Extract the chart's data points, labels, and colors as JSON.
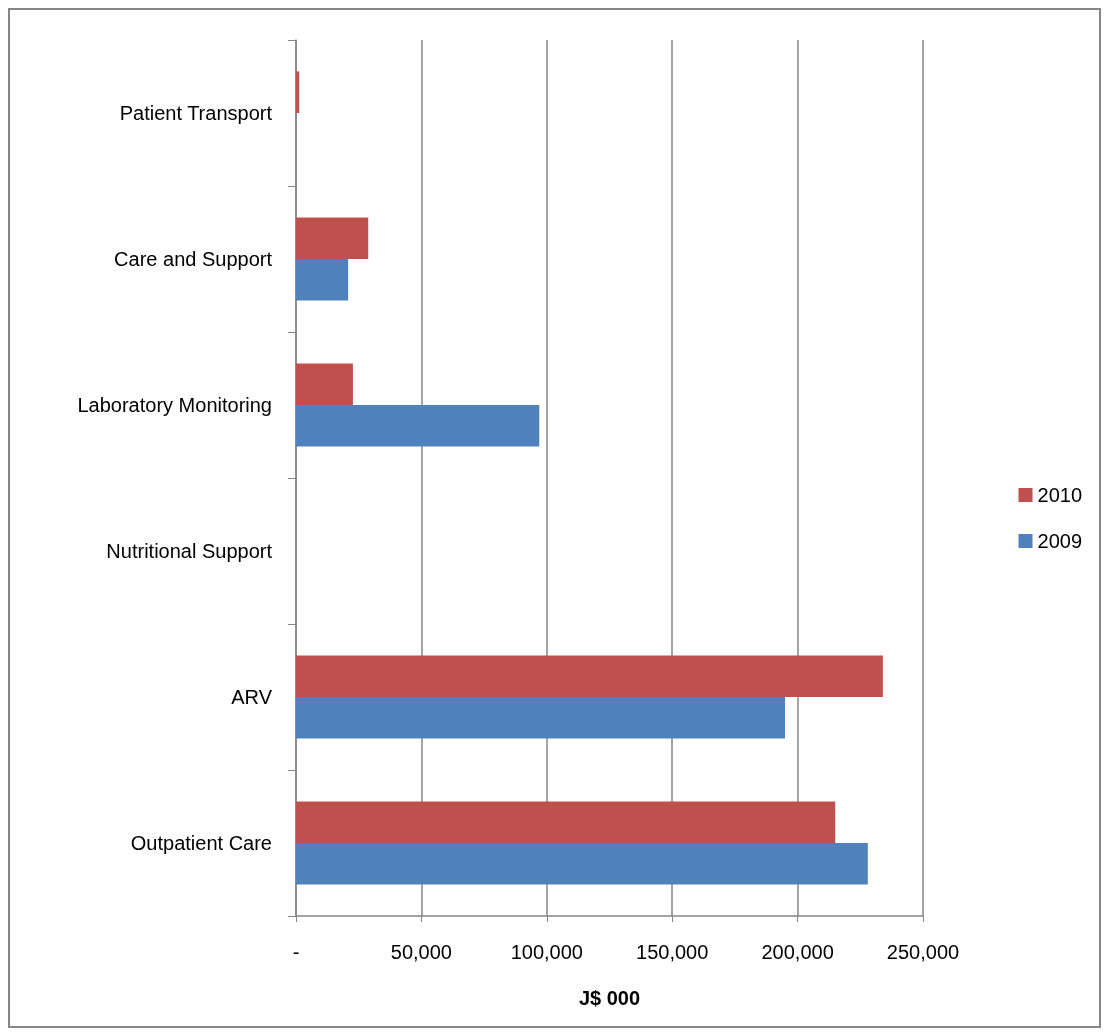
{
  "chart_data": {
    "type": "bar",
    "orientation": "horizontal",
    "categories": [
      "Patient Transport",
      "Care and Support",
      "Laboratory Monitoring",
      "Nutritional Support",
      "ARV",
      "Outpatient Care"
    ],
    "series": [
      {
        "name": "2010",
        "color": "#c0504d",
        "values": [
          1300,
          28800,
          22700,
          null,
          234000,
          215000
        ]
      },
      {
        "name": "2009",
        "color": "#4f81bd",
        "values": [
          null,
          20800,
          97000,
          null,
          195000,
          228000
        ]
      }
    ],
    "xlabel": "J$ 000",
    "xlim": [
      0,
      250000
    ],
    "xticks": [
      {
        "value": 0,
        "label": "-"
      },
      {
        "value": 50000,
        "label": "50,000"
      },
      {
        "value": 100000,
        "label": "100,000"
      },
      {
        "value": 150000,
        "label": "150,000"
      },
      {
        "value": 200000,
        "label": "200,000"
      },
      {
        "value": 250000,
        "label": "250,000"
      }
    ],
    "grid": "x",
    "legend": "right"
  }
}
